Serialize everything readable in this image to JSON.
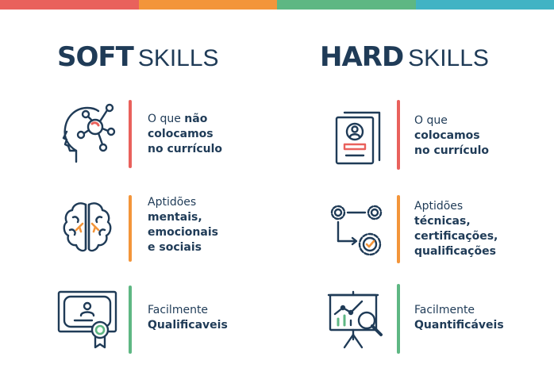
{
  "colors": {
    "navy": "#1f3b57",
    "red": "#e9615c",
    "orange": "#f3953a",
    "green": "#5eb783",
    "teal": "#41b3c4"
  },
  "soft": {
    "title_bold": "SOFT",
    "title_light": "SKILLS",
    "items": [
      {
        "icon": "head-network-icon",
        "line1_pre": "O que ",
        "line1_bold": "não",
        "lines_bold": [
          "colocamos",
          "no currículo"
        ],
        "plain": []
      },
      {
        "icon": "brain-icon",
        "plain": [
          "Aptidões"
        ],
        "lines_bold": [
          "mentais,",
          "emocionais",
          "e sociais"
        ]
      },
      {
        "icon": "certificate-icon",
        "plain": [
          "Facilmente"
        ],
        "lines_bold": [
          "Qualificaveis"
        ]
      }
    ]
  },
  "hard": {
    "title_bold": "HARD",
    "title_light": "SKILLS",
    "items": [
      {
        "icon": "resume-icon",
        "plain": [
          "O que"
        ],
        "lines_bold": [
          "colocamos",
          "no currículo"
        ]
      },
      {
        "icon": "gears-process-icon",
        "plain": [
          "Aptidões"
        ],
        "lines_bold": [
          "técnicas,",
          "certificações,",
          "qualificações"
        ]
      },
      {
        "icon": "chart-magnifier-icon",
        "plain": [
          "Facilmente"
        ],
        "lines_bold": [
          "Quantificáveis"
        ]
      }
    ]
  }
}
